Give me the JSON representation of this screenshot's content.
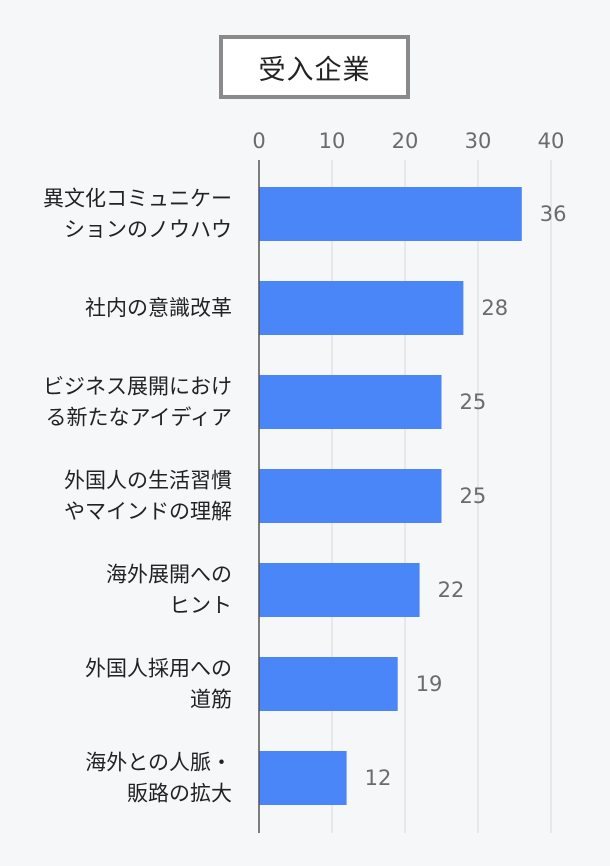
{
  "header": {
    "title": "受入企業"
  },
  "chart_data": {
    "type": "bar",
    "orientation": "horizontal",
    "title": "受入企業",
    "categories": [
      [
        "異文化コミュニケー",
        "ションのノウハウ"
      ],
      [
        "社内の意識改革"
      ],
      [
        "ビジネス展開におけ",
        "る新たなアイディア"
      ],
      [
        "外国人の生活習慣",
        "やマインドの理解"
      ],
      [
        "海外展開への",
        "ヒント"
      ],
      [
        "外国人採用への",
        "道筋"
      ],
      [
        "海外との人脈・",
        "販路の拡大"
      ]
    ],
    "values": [
      36,
      28,
      25,
      25,
      22,
      19,
      12
    ],
    "xlim": [
      0,
      40
    ],
    "xticks": [
      "0",
      "10",
      "20",
      "30",
      "40"
    ],
    "grid": true,
    "bar_color": "#4a86f7",
    "grid_color": "#d9dadd",
    "axis_color": "#555555"
  }
}
